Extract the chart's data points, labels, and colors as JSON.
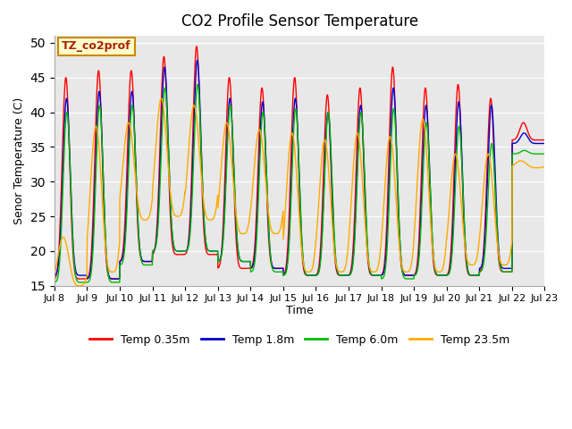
{
  "title": "CO2 Profile Sensor Temperature",
  "ylabel": "Senor Temperature (C)",
  "xlabel": "Time",
  "annotation_text": "TZ_co2prof",
  "annotation_facecolor": "#ffffcc",
  "annotation_edgecolor": "#cc8800",
  "ylim": [
    15,
    51
  ],
  "yticks": [
    15,
    20,
    25,
    30,
    35,
    40,
    45,
    50
  ],
  "plot_bg_color": "#e8e8e8",
  "fig_bg_color": "#ffffff",
  "grid_color": "#ffffff",
  "lines": [
    {
      "label": "Temp 0.35m",
      "color": "#ff0000"
    },
    {
      "label": "Temp 1.8m",
      "color": "#0000cc"
    },
    {
      "label": "Temp 6.0m",
      "color": "#00bb00"
    },
    {
      "label": "Temp 23.5m",
      "color": "#ffaa00"
    }
  ],
  "x_tick_labels": [
    "Jul 8",
    "Jul 9",
    "Jul 10",
    "Jul 11",
    "Jul 12",
    "Jul 13",
    "Jul 14",
    "Jul 15",
    "Jul 16",
    "Jul 17",
    "Jul 18",
    "Jul 19",
    "Jul 20",
    "Jul 21",
    "Jul 22",
    "Jul 23"
  ],
  "num_days": 15,
  "pts_per_day": 144,
  "day_peaks_red": [
    45.0,
    46.0,
    46.0,
    48.0,
    49.5,
    45.0,
    43.5,
    45.0,
    42.5,
    43.5,
    46.5,
    43.5,
    44.0,
    42.0,
    38.5
  ],
  "day_troughs_red": [
    16.0,
    16.0,
    18.5,
    19.5,
    19.5,
    17.5,
    17.5,
    16.5,
    16.5,
    16.5,
    16.5,
    16.5,
    16.5,
    17.0,
    36.0
  ],
  "day_peaks_blue": [
    42.0,
    43.0,
    43.0,
    46.5,
    47.5,
    42.0,
    41.5,
    42.0,
    40.0,
    41.0,
    43.5,
    41.0,
    41.5,
    41.0,
    37.0
  ],
  "day_troughs_blue": [
    16.5,
    16.0,
    18.5,
    20.0,
    20.0,
    18.5,
    17.5,
    16.5,
    16.5,
    16.5,
    16.5,
    16.5,
    16.5,
    17.5,
    35.5
  ],
  "day_peaks_green": [
    40.0,
    41.0,
    41.0,
    43.5,
    44.0,
    41.0,
    40.0,
    40.5,
    40.0,
    40.0,
    40.5,
    38.5,
    38.0,
    35.5,
    34.5
  ],
  "day_troughs_green": [
    15.5,
    15.5,
    18.0,
    20.0,
    20.0,
    18.5,
    17.0,
    16.5,
    16.5,
    16.5,
    16.0,
    16.5,
    16.5,
    17.0,
    34.0
  ],
  "day_peaks_orange": [
    22.0,
    38.0,
    38.5,
    42.0,
    41.0,
    38.5,
    37.5,
    37.0,
    36.0,
    37.0,
    36.5,
    39.0,
    34.0,
    34.0,
    33.0
  ],
  "day_troughs_orange": [
    15.0,
    17.0,
    24.5,
    25.0,
    24.5,
    22.5,
    22.5,
    17.0,
    17.0,
    17.0,
    17.0,
    17.0,
    18.0,
    18.0,
    32.0
  ],
  "peak_phase": 0.35,
  "sharpness": 4.0,
  "orange_sharpness": 1.8,
  "phase_red": 0.0,
  "phase_blue": 0.02,
  "phase_green": 0.03,
  "phase_orange": -0.08
}
